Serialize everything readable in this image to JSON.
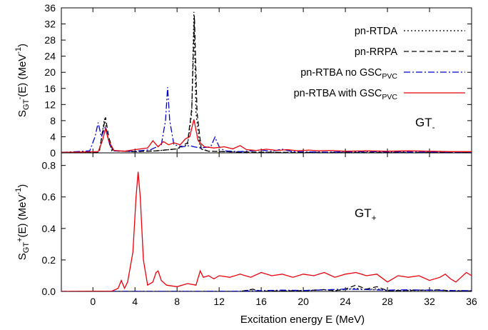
{
  "chart_data": {
    "type": "line",
    "xlabel": "Excitation energy E (MeV)",
    "x_ticks": [
      0,
      4,
      8,
      12,
      16,
      20,
      24,
      28,
      32,
      36
    ],
    "xlim": [
      -3,
      36
    ],
    "panels": [
      {
        "id": "gt-minus",
        "ylabel": {
          "base": "S",
          "sub": "GT",
          "sup": "-",
          "tail": "(E) (MeV",
          "unit_sup": "-1",
          "close": ")"
        },
        "annotation": {
          "base": "GT",
          "sub": "-"
        },
        "ylim": [
          0,
          36
        ],
        "y_ticks": [
          0,
          4,
          8,
          12,
          16,
          20,
          24,
          28,
          32,
          36
        ],
        "legend_position": "top-right",
        "series": [
          {
            "name": "pn-RTDA",
            "name_sub": "",
            "color": "#000000",
            "dash": "dotted",
            "points": [
              [
                -3,
                0.1
              ],
              [
                0.6,
                0.2
              ],
              [
                0.9,
                5
              ],
              [
                1.1,
                8.5
              ],
              [
                1.4,
                4
              ],
              [
                1.8,
                0.5
              ],
              [
                4,
                0.3
              ],
              [
                6,
                0.5
              ],
              [
                8,
                1
              ],
              [
                9,
                2
              ],
              [
                9.4,
                10
              ],
              [
                9.6,
                35
              ],
              [
                9.8,
                10
              ],
              [
                10.2,
                1
              ],
              [
                11,
                0.4
              ],
              [
                14,
                0.2
              ],
              [
                20,
                0.1
              ],
              [
                36,
                0.1
              ]
            ]
          },
          {
            "name": "pn-RRPA",
            "name_sub": "",
            "color": "#000000",
            "dash": "dashed",
            "points": [
              [
                -3,
                0.1
              ],
              [
                0.6,
                0.2
              ],
              [
                0.9,
                5
              ],
              [
                1.2,
                8.8
              ],
              [
                1.5,
                4
              ],
              [
                1.9,
                0.5
              ],
              [
                4,
                0.3
              ],
              [
                6,
                0.5
              ],
              [
                8,
                1
              ],
              [
                9,
                2.5
              ],
              [
                9.4,
                11
              ],
              [
                9.65,
                34
              ],
              [
                9.9,
                10
              ],
              [
                10.3,
                1
              ],
              [
                11,
                0.4
              ],
              [
                14,
                0.2
              ],
              [
                20,
                0.1
              ],
              [
                36,
                0.1
              ]
            ]
          },
          {
            "name": "pn-RTBA no GSC",
            "name_sub": "PVC",
            "color": "#0000cc",
            "dash": "dashdot",
            "points": [
              [
                -3,
                0.1
              ],
              [
                -0.3,
                0.5
              ],
              [
                0.2,
                4
              ],
              [
                0.5,
                7.5
              ],
              [
                0.8,
                4
              ],
              [
                1.2,
                6.5
              ],
              [
                1.6,
                2
              ],
              [
                2,
                0.5
              ],
              [
                4,
                0.4
              ],
              [
                5.5,
                0.8
              ],
              [
                6.5,
                2
              ],
              [
                6.9,
                8
              ],
              [
                7.1,
                16.3
              ],
              [
                7.3,
                8
              ],
              [
                7.7,
                2
              ],
              [
                8.5,
                1.5
              ],
              [
                9.2,
                1.8
              ],
              [
                9.6,
                1.5
              ],
              [
                10.2,
                1.2
              ],
              [
                11.2,
                1.5
              ],
              [
                11.6,
                3.9
              ],
              [
                12,
                1.5
              ],
              [
                12.5,
                0.5
              ],
              [
                14,
                0.3
              ],
              [
                16,
                0.7
              ],
              [
                17,
                0.4
              ],
              [
                18,
                0.9
              ],
              [
                19,
                0.3
              ],
              [
                22,
                0.2
              ],
              [
                26,
                0.3
              ],
              [
                36,
                0.1
              ]
            ]
          },
          {
            "name": "pn-RTBA with GSC",
            "name_sub": "PVC",
            "color": "#e8000a",
            "dash": "solid",
            "points": [
              [
                -3,
                0.1
              ],
              [
                0.5,
                0.3
              ],
              [
                0.9,
                3
              ],
              [
                1.2,
                6
              ],
              [
                1.5,
                3
              ],
              [
                2,
                0.6
              ],
              [
                3,
                0.4
              ],
              [
                4,
                0.8
              ],
              [
                5.2,
                1.2
              ],
              [
                5.7,
                3
              ],
              [
                6.2,
                1.5
              ],
              [
                6.7,
                2.8
              ],
              [
                7.2,
                2
              ],
              [
                7.7,
                2.5
              ],
              [
                8.3,
                2
              ],
              [
                8.8,
                3.5
              ],
              [
                9.2,
                4
              ],
              [
                9.6,
                8.3
              ],
              [
                10,
                3
              ],
              [
                10.6,
                1.5
              ],
              [
                11.5,
                1.2
              ],
              [
                12.5,
                1.5
              ],
              [
                13.3,
                1
              ],
              [
                14,
                1.8
              ],
              [
                14.6,
                0.8
              ],
              [
                15.5,
                0.6
              ],
              [
                16.5,
                0.9
              ],
              [
                17.5,
                0.6
              ],
              [
                18.5,
                0.8
              ],
              [
                19.5,
                0.5
              ],
              [
                20.5,
                0.7
              ],
              [
                21.5,
                0.5
              ],
              [
                22.5,
                0.6
              ],
              [
                24,
                0.4
              ],
              [
                26,
                0.5
              ],
              [
                28,
                0.4
              ],
              [
                30,
                0.5
              ],
              [
                32,
                0.4
              ],
              [
                34,
                0.3
              ],
              [
                36,
                0.3
              ]
            ]
          }
        ]
      },
      {
        "id": "gt-plus",
        "ylabel": {
          "base": "S",
          "sub": "GT",
          "sup": "+",
          "tail": "(E) (MeV",
          "unit_sup": "-1",
          "close": ")"
        },
        "annotation": {
          "base": "GT",
          "sub": "+"
        },
        "ylim": [
          0,
          0.88
        ],
        "y_ticks": [
          0.0,
          0.2,
          0.4,
          0.6,
          0.8
        ],
        "series": [
          {
            "name": "pn-RTDA",
            "color": "#000000",
            "dash": "dotted",
            "points": [
              [
                -3,
                0
              ],
              [
                14,
                0.0
              ],
              [
                15.2,
                0.012
              ],
              [
                16,
                0.002
              ],
              [
                20,
                0.004
              ],
              [
                22,
                0.01
              ],
              [
                23,
                0.004
              ],
              [
                25,
                0.02
              ],
              [
                26,
                0.012
              ],
              [
                27,
                0.016
              ],
              [
                28,
                0.004
              ],
              [
                33,
                0.008
              ],
              [
                34,
                0.003
              ],
              [
                36,
                0.003
              ]
            ]
          },
          {
            "name": "pn-RRPA",
            "color": "#000000",
            "dash": "dashed",
            "points": [
              [
                -3,
                0
              ],
              [
                14,
                0.0
              ],
              [
                15.2,
                0.014
              ],
              [
                16,
                0.002
              ],
              [
                20,
                0.005
              ],
              [
                22,
                0.012
              ],
              [
                23,
                0.005
              ],
              [
                24,
                0.015
              ],
              [
                25,
                0.04
              ],
              [
                26,
                0.015
              ],
              [
                27,
                0.03
              ],
              [
                28,
                0.005
              ],
              [
                33,
                0.01
              ],
              [
                34,
                0.003
              ],
              [
                36,
                0.003
              ]
            ]
          },
          {
            "name": "pn-RTBA no GSC",
            "color": "#0000cc",
            "dash": "dashdot",
            "points": [
              [
                -3,
                0
              ],
              [
                14,
                0.001
              ],
              [
                16,
                0.005
              ],
              [
                18,
                0.008
              ],
              [
                20,
                0.006
              ],
              [
                22,
                0.01
              ],
              [
                24,
                0.015
              ],
              [
                26,
                0.012
              ],
              [
                28,
                0.008
              ],
              [
                30,
                0.01
              ],
              [
                32,
                0.008
              ],
              [
                34,
                0.006
              ],
              [
                36,
                0.005
              ]
            ]
          },
          {
            "name": "pn-RTBA with GSC",
            "color": "#e8000a",
            "dash": "solid",
            "points": [
              [
                -3,
                0
              ],
              [
                1.8,
                0.002
              ],
              [
                2.4,
                0.02
              ],
              [
                2.7,
                0.07
              ],
              [
                3.0,
                0.02
              ],
              [
                3.3,
                0.06
              ],
              [
                3.8,
                0.25
              ],
              [
                4.1,
                0.6
              ],
              [
                4.3,
                0.76
              ],
              [
                4.5,
                0.6
              ],
              [
                4.8,
                0.2
              ],
              [
                5.2,
                0.04
              ],
              [
                5.7,
                0.06
              ],
              [
                6.0,
                0.12
              ],
              [
                6.2,
                0.13
              ],
              [
                6.5,
                0.07
              ],
              [
                7,
                0.04
              ],
              [
                8,
                0.03
              ],
              [
                9,
                0.05
              ],
              [
                9.8,
                0.04
              ],
              [
                10.2,
                0.13
              ],
              [
                10.5,
                0.09
              ],
              [
                11,
                0.1
              ],
              [
                11.5,
                0.08
              ],
              [
                12,
                0.1
              ],
              [
                13,
                0.09
              ],
              [
                14,
                0.11
              ],
              [
                15,
                0.09
              ],
              [
                16,
                0.12
              ],
              [
                17,
                0.1
              ],
              [
                18,
                0.11
              ],
              [
                19,
                0.09
              ],
              [
                20,
                0.11
              ],
              [
                21,
                0.1
              ],
              [
                22,
                0.12
              ],
              [
                23,
                0.09
              ],
              [
                24,
                0.11
              ],
              [
                25,
                0.12
              ],
              [
                26,
                0.1
              ],
              [
                27,
                0.11
              ],
              [
                28,
                0.06
              ],
              [
                29,
                0.1
              ],
              [
                30,
                0.09
              ],
              [
                31,
                0.1
              ],
              [
                32,
                0.07
              ],
              [
                33,
                0.09
              ],
              [
                33.5,
                0.11
              ],
              [
                34,
                0.08
              ],
              [
                34.5,
                0.06
              ],
              [
                35,
                0.09
              ],
              [
                35.5,
                0.12
              ],
              [
                36,
                0.1
              ]
            ]
          }
        ]
      }
    ]
  }
}
